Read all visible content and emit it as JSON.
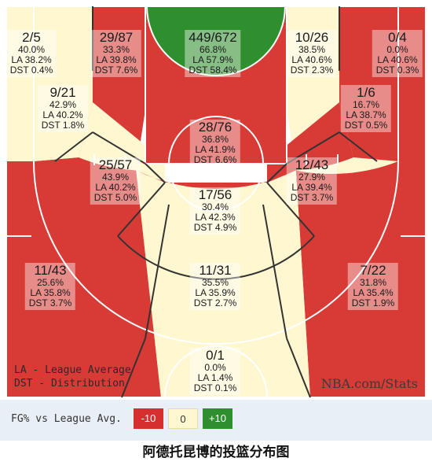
{
  "chart_data": {
    "type": "shot-chart",
    "zones": [
      {
        "id": "left-corner-three",
        "made_attempts": "2/5",
        "fg_pct": "40.0%",
        "la": "LA 38.2%",
        "dst": "DST 0.4%",
        "color": "#fff7d0"
      },
      {
        "id": "left-wing-three",
        "made_attempts": "29/87",
        "fg_pct": "33.3%",
        "la": "LA 39.8%",
        "dst": "DST 7.6%",
        "color": "#d83a36"
      },
      {
        "id": "restricted-area",
        "made_attempts": "449/672",
        "fg_pct": "66.8%",
        "la": "LA 57.9%",
        "dst": "DST 58.4%",
        "color": "#2f8f2f"
      },
      {
        "id": "right-wing-three",
        "made_attempts": "10/26",
        "fg_pct": "38.5%",
        "la": "LA 40.6%",
        "dst": "DST 2.3%",
        "color": "#fff7d0"
      },
      {
        "id": "right-corner-three",
        "made_attempts": "0/4",
        "fg_pct": "0.0%",
        "la": "LA 40.6%",
        "dst": "DST 0.3%",
        "color": "#d83a36"
      },
      {
        "id": "left-baseline-mid",
        "made_attempts": "9/21",
        "fg_pct": "42.9%",
        "la": "LA 40.2%",
        "dst": "DST 1.8%",
        "color": "#fff7d0"
      },
      {
        "id": "right-baseline-mid",
        "made_attempts": "1/6",
        "fg_pct": "16.7%",
        "la": "LA 38.7%",
        "dst": "DST 0.5%",
        "color": "#d83a36"
      },
      {
        "id": "paint-non-ra",
        "made_attempts": "28/76",
        "fg_pct": "36.8%",
        "la": "LA 41.9%",
        "dst": "DST 6.6%",
        "color": "#d83a36"
      },
      {
        "id": "left-elbow-mid",
        "made_attempts": "25/57",
        "fg_pct": "43.9%",
        "la": "LA 40.2%",
        "dst": "DST 5.0%",
        "color": "#fff7d0"
      },
      {
        "id": "right-elbow-mid",
        "made_attempts": "12/43",
        "fg_pct": "27.9%",
        "la": "LA 39.4%",
        "dst": "DST 3.7%",
        "color": "#d83a36"
      },
      {
        "id": "top-key-mid",
        "made_attempts": "17/56",
        "fg_pct": "30.4%",
        "la": "LA 42.3%",
        "dst": "DST 4.9%",
        "color": "#d83a36"
      },
      {
        "id": "left-above-break-three",
        "made_attempts": "11/43",
        "fg_pct": "25.6%",
        "la": "LA 35.8%",
        "dst": "DST 3.7%",
        "color": "#d83a36"
      },
      {
        "id": "center-above-break-three",
        "made_attempts": "11/31",
        "fg_pct": "35.5%",
        "la": "LA 35.9%",
        "dst": "DST 2.7%",
        "color": "#fff7d0"
      },
      {
        "id": "right-above-break-three",
        "made_attempts": "7/22",
        "fg_pct": "31.8%",
        "la": "LA 35.4%",
        "dst": "DST 1.9%",
        "color": "#d83a36"
      },
      {
        "id": "backcourt",
        "made_attempts": "0/1",
        "fg_pct": "0.0%",
        "la": "LA 1.4%",
        "dst": "DST 0.1%",
        "color": "#fff7d0"
      }
    ],
    "legend_notes": [
      "LA - League Average",
      "DST - Distribution"
    ],
    "source": "NBA.com/Stats",
    "scale": {
      "label": "FG% vs League Avg.",
      "neg": "-10",
      "zero": "0",
      "pos": "+10"
    },
    "colors": {
      "below": "#d83a36",
      "average": "#fff7d0",
      "above": "#2f8f2f",
      "line": "#ffffff",
      "divider": "#333333"
    }
  },
  "caption": "阿德托昆博的投篮分布图"
}
